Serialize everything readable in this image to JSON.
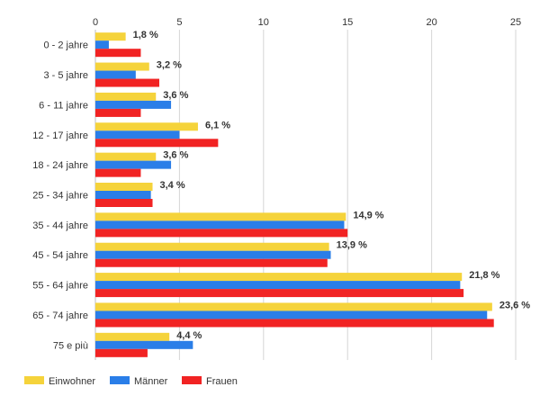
{
  "chart_data": {
    "type": "bar",
    "orientation": "horizontal",
    "categories": [
      "0 - 2 jahre",
      "3 - 5 jahre",
      "6 - 11 jahre",
      "12 - 17 jahre",
      "18 - 24 jahre",
      "25 - 34 jahre",
      "35 - 44 jahre",
      "45 - 54 jahre",
      "55 - 64 jahre",
      "65 - 74 jahre",
      "75 e più"
    ],
    "series": [
      {
        "name": "Einwohner",
        "color": "#f5d33b",
        "values": [
          1.8,
          3.2,
          3.6,
          6.1,
          3.6,
          3.4,
          14.9,
          13.9,
          21.8,
          23.6,
          4.4
        ]
      },
      {
        "name": "Männer",
        "color": "#2a7ee8",
        "values": [
          0.8,
          2.4,
          4.5,
          5.0,
          4.5,
          3.3,
          14.8,
          14.0,
          21.7,
          23.3,
          5.8
        ]
      },
      {
        "name": "Frauen",
        "color": "#f12323",
        "values": [
          2.7,
          3.8,
          2.7,
          7.3,
          2.7,
          3.4,
          15.0,
          13.8,
          21.9,
          23.7,
          3.1
        ]
      }
    ],
    "data_labels": [
      "1,8 %",
      "3,2 %",
      "3,6 %",
      "6,1 %",
      "3,6 %",
      "3,4 %",
      "14,9 %",
      "13,9 %",
      "21,8 %",
      "23,6 %",
      "4,4 %"
    ],
    "x_ticks": [
      0,
      5,
      10,
      15,
      20,
      25
    ],
    "xlim": [
      0,
      25
    ],
    "xaxis_position": "top",
    "grid": true,
    "legend_position": "bottom-left",
    "title": "",
    "xlabel": "",
    "ylabel": ""
  }
}
